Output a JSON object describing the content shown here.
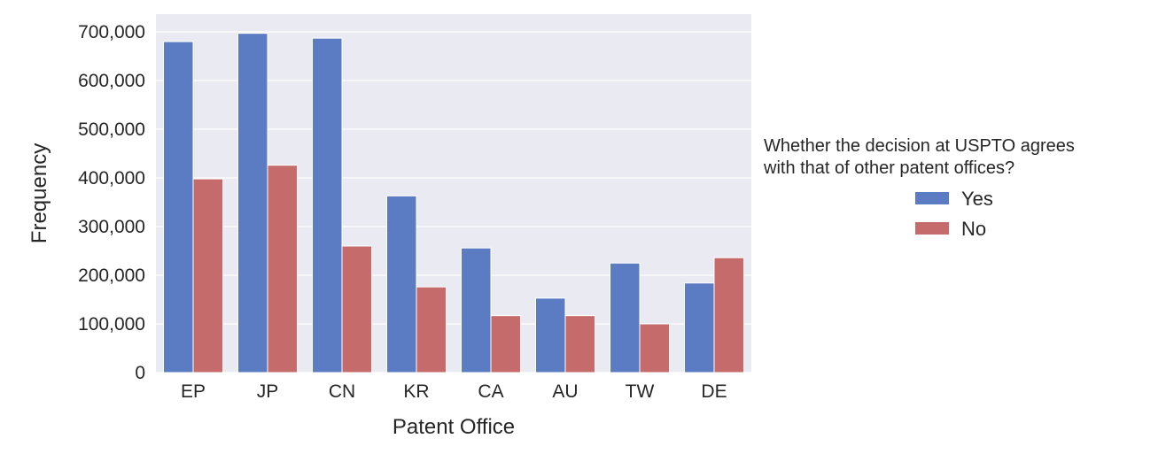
{
  "chart_data": {
    "type": "bar",
    "categories": [
      "EP",
      "JP",
      "CN",
      "KR",
      "CA",
      "AU",
      "TW",
      "DE"
    ],
    "series": [
      {
        "name": "Yes",
        "color": "#5b7cc2",
        "values": [
          680000,
          697000,
          687000,
          363000,
          256000,
          153000,
          225000,
          184000
        ]
      },
      {
        "name": "No",
        "color": "#c56b6b",
        "values": [
          398000,
          426000,
          260000,
          176000,
          117000,
          117000,
          100000,
          236000
        ]
      }
    ],
    "xlabel": "Patent Office",
    "ylabel": "Frequency",
    "ylim": [
      0,
      700000
    ],
    "yticks": [
      0,
      100000,
      200000,
      300000,
      400000,
      500000,
      600000,
      700000
    ],
    "ytick_labels": [
      "0",
      "100,000",
      "200,000",
      "300,000",
      "400,000",
      "500,000",
      "600,000",
      "700,000"
    ],
    "grid": true,
    "legend": {
      "title_lines": [
        "Whether the decision at USPTO agrees",
        "with that of other patent offices?"
      ],
      "placement": "right-outside"
    },
    "background_color": "#eaeaf2"
  }
}
